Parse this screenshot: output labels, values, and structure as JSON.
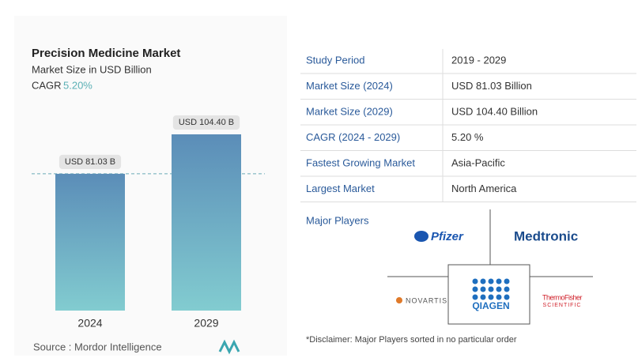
{
  "chart_data": {
    "type": "bar",
    "title": "Precision Medicine Market",
    "subtitle": "Market Size in USD Billion",
    "cagr_label": "CAGR",
    "cagr_value": "5.20%",
    "categories": [
      "2024",
      "2029"
    ],
    "values": [
      81.03,
      104.4
    ],
    "value_labels": [
      "USD 81.03 B",
      "USD 104.40 B"
    ],
    "color": [
      "#5b8db8",
      "#82ccd0"
    ],
    "source": "Source : Mordor Intelligence"
  },
  "table": {
    "rows": [
      [
        "Study Period",
        "2019 - 2029"
      ],
      [
        "Market Size (2024)",
        "USD 81.03 Billion"
      ],
      [
        "Market Size (2029)",
        "USD 104.40 Billion"
      ],
      [
        "CAGR (2024 - 2029)",
        "5.20 %"
      ],
      [
        "Fastest Growing Market",
        "Asia-Pacific"
      ],
      [
        "Largest Market",
        "North America"
      ]
    ]
  },
  "major_players": {
    "label": "Major Players",
    "logos": [
      "Pfizer",
      "Medtronic",
      "NOVARTIS",
      "QIAGEN",
      {
        "name": "ThermoFisher",
        "sub": "SCIENTIFIC"
      }
    ]
  },
  "disclaimer": "*Disclaimer: Major Players sorted in no particular order"
}
